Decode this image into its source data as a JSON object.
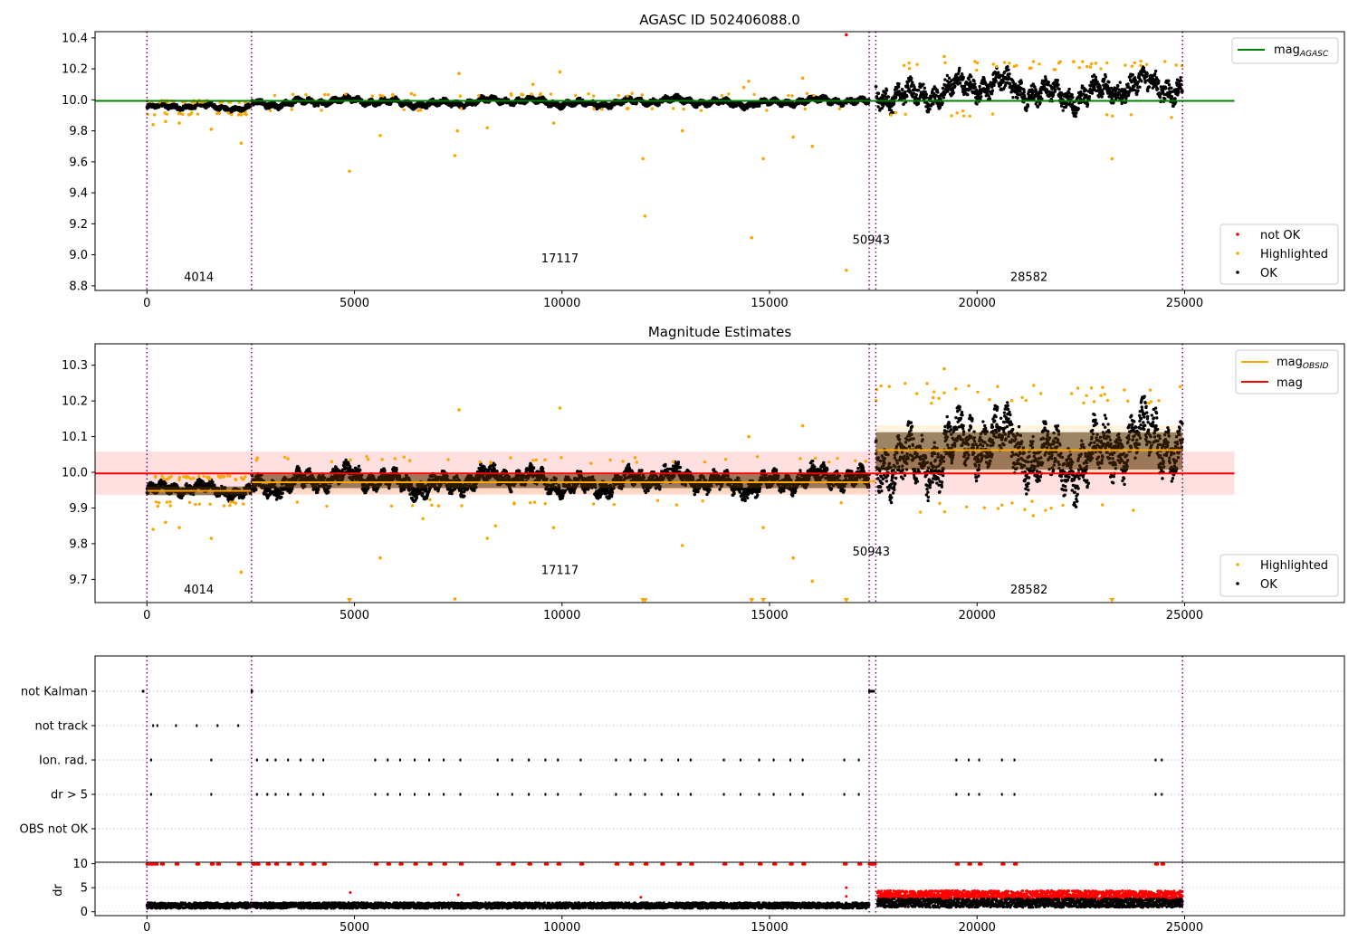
{
  "chart_data": [
    {
      "panel": "top",
      "type": "scatter",
      "title": "AGASC ID 502406088.0",
      "xlim": [
        -1250,
        28850
      ],
      "ylim": [
        8.77,
        10.44
      ],
      "xticks": [
        "0",
        "5000",
        "10000",
        "15000",
        "20000",
        "25000"
      ],
      "yticks": [
        "8.8",
        "9.0",
        "9.2",
        "9.4",
        "9.6",
        "9.8",
        "10.0",
        "10.2",
        "10.4"
      ],
      "hline": {
        "name": "mag_AGASC",
        "value": 9.993,
        "x": [
          -1250,
          26200
        ],
        "color": "#008000"
      },
      "obsid_boundaries": [
        0,
        2520,
        17400,
        17560,
        24950
      ],
      "obsids": [
        {
          "label": "4014",
          "x": 1250,
          "y": 8.83
        },
        {
          "label": "17117",
          "x": 9950,
          "y": 8.95
        },
        {
          "label": "50943",
          "x": 17450,
          "y": 9.07
        },
        {
          "label": "28582",
          "x": 21250,
          "y": 8.83
        }
      ],
      "segments": [
        {
          "x": [
            0,
            2500
          ],
          "mean": 9.95,
          "amp": 0.025
        },
        {
          "x": [
            2520,
            17400
          ],
          "mean": 9.985,
          "amp": 0.03
        },
        {
          "x": [
            17560,
            24950
          ],
          "mean": 10.06,
          "amp": 0.1
        }
      ],
      "highlighted_points": [
        [
          150,
          9.84
        ],
        [
          450,
          9.86
        ],
        [
          780,
          9.85
        ],
        [
          1550,
          9.81
        ],
        [
          2270,
          9.72
        ],
        [
          4880,
          9.54
        ],
        [
          5620,
          9.77
        ],
        [
          7420,
          9.64
        ],
        [
          7480,
          9.8
        ],
        [
          8200,
          9.82
        ],
        [
          9800,
          9.85
        ],
        [
          11950,
          9.62
        ],
        [
          12000,
          9.25
        ],
        [
          12900,
          9.8
        ],
        [
          14570,
          9.11
        ],
        [
          14850,
          9.62
        ],
        [
          15570,
          9.76
        ],
        [
          16030,
          9.7
        ],
        [
          16850,
          8.9
        ],
        [
          23250,
          9.62
        ],
        [
          7520,
          10.17
        ],
        [
          9950,
          10.18
        ],
        [
          9300,
          10.1
        ],
        [
          14500,
          10.12
        ],
        [
          15800,
          10.14
        ],
        [
          14380,
          10.08
        ],
        [
          19210,
          10.28
        ]
      ],
      "not_ok_points": [
        [
          16850,
          10.42
        ]
      ],
      "legend": {
        "line": "mag",
        "line_sub": "AGASC",
        "markers": [
          "not OK",
          "Highlighted",
          "OK"
        ]
      }
    },
    {
      "panel": "middle",
      "type": "scatter",
      "title": "Magnitude Estimates",
      "xlim": [
        -1250,
        28850
      ],
      "ylim": [
        9.635,
        10.36
      ],
      "xticks": [
        "0",
        "5000",
        "10000",
        "15000",
        "20000",
        "25000"
      ],
      "yticks": [
        "9.7",
        "9.8",
        "9.9",
        "10.0",
        "10.1",
        "10.2",
        "10.3"
      ],
      "mag": {
        "value": 9.997,
        "band": [
          9.937,
          10.058
        ],
        "x": [
          -1250,
          26200
        ],
        "color": "#ff0000"
      },
      "mag_obsid": [
        {
          "x": [
            0,
            2500
          ],
          "value": 9.948,
          "band": [
            9.935,
            9.96
          ]
        },
        {
          "x": [
            2520,
            17400
          ],
          "value": 9.972,
          "band": [
            9.94,
            10.0
          ]
        },
        {
          "x": [
            17400,
            17560
          ],
          "value": 9.975,
          "band": [
            9.96,
            9.99
          ]
        },
        {
          "x": [
            17560,
            24950
          ],
          "value": 10.062,
          "band": [
            9.995,
            10.132
          ]
        }
      ],
      "obsid_boundaries": [
        0,
        2520,
        17400,
        17560,
        24950
      ],
      "obsids": [
        {
          "label": "4014",
          "x": 1250,
          "y": 9.66
        },
        {
          "label": "17117",
          "x": 9950,
          "y": 9.715
        },
        {
          "label": "50943",
          "x": 17450,
          "y": 9.767
        },
        {
          "label": "28582",
          "x": 21250,
          "y": 9.66
        }
      ],
      "offscale_markers_x": [
        4880,
        11950,
        12000,
        14570,
        14850,
        16850,
        23250
      ],
      "highlighted_points": [
        [
          150,
          9.84
        ],
        [
          450,
          9.86
        ],
        [
          780,
          9.845
        ],
        [
          1550,
          9.815
        ],
        [
          2270,
          9.72
        ],
        [
          5620,
          9.76
        ],
        [
          7420,
          9.645
        ],
        [
          6650,
          9.87
        ],
        [
          8200,
          9.815
        ],
        [
          8400,
          9.85
        ],
        [
          9800,
          9.845
        ],
        [
          12900,
          9.795
        ],
        [
          14850,
          9.845
        ],
        [
          15570,
          9.76
        ],
        [
          16030,
          9.695
        ],
        [
          7520,
          10.175
        ],
        [
          9950,
          10.18
        ],
        [
          14500,
          10.1
        ],
        [
          15800,
          10.13
        ],
        [
          19210,
          10.29
        ]
      ],
      "legend": {
        "line1": "mag",
        "line1_sub": "OBSID",
        "line2": "mag",
        "markers": [
          "Highlighted",
          "OK"
        ]
      }
    },
    {
      "panel": "flags",
      "type": "scatter",
      "xlim": [
        -1250,
        28850
      ],
      "categories": [
        "not Kalman",
        "not track",
        "Ion. rad.",
        "dr > 5",
        "OBS not OK"
      ],
      "flag_points": {
        "not Kalman": [
          [
            -100,
            60
          ],
          [
            2520,
            60
          ],
          [
            17400,
            160
          ]
        ],
        "not track": [
          [
            150,
            15
          ],
          [
            250,
            15
          ],
          [
            700,
            15
          ],
          [
            1200,
            15
          ],
          [
            1700,
            25
          ],
          [
            2200,
            10
          ]
        ],
        "Ion. rad.": [
          [
            100,
            0
          ],
          [
            1550,
            0
          ],
          [
            2650,
            0
          ],
          [
            2900,
            0
          ],
          [
            3100,
            0
          ],
          [
            3400,
            0
          ],
          [
            3700,
            0
          ],
          [
            4000,
            0
          ],
          [
            4250,
            0
          ],
          [
            5500,
            0
          ],
          [
            5800,
            0
          ],
          [
            6100,
            0
          ],
          [
            6450,
            0
          ],
          [
            6800,
            0
          ],
          [
            7150,
            0
          ],
          [
            7550,
            0
          ],
          [
            8450,
            0
          ],
          [
            8800,
            0
          ],
          [
            9200,
            0
          ],
          [
            9600,
            0
          ],
          [
            9900,
            0
          ],
          [
            10450,
            0
          ],
          [
            11300,
            0
          ],
          [
            11650,
            0
          ],
          [
            12000,
            0
          ],
          [
            12400,
            0
          ],
          [
            12800,
            0
          ],
          [
            13100,
            0
          ],
          [
            13900,
            0
          ],
          [
            14300,
            0
          ],
          [
            14750,
            0
          ],
          [
            15100,
            0
          ],
          [
            15500,
            0
          ],
          [
            15800,
            0
          ],
          [
            16800,
            0
          ],
          [
            17150,
            0
          ],
          [
            19500,
            0
          ],
          [
            19800,
            0
          ],
          [
            20050,
            0
          ],
          [
            20600,
            0
          ],
          [
            20900,
            0
          ],
          [
            24300,
            0
          ],
          [
            24450,
            0
          ]
        ],
        "dr > 5": [
          [
            100,
            0
          ],
          [
            1550,
            0
          ],
          [
            2650,
            0
          ],
          [
            2900,
            0
          ],
          [
            3100,
            0
          ],
          [
            3400,
            0
          ],
          [
            3700,
            0
          ],
          [
            4000,
            0
          ],
          [
            4250,
            0
          ],
          [
            5500,
            0
          ],
          [
            5800,
            0
          ],
          [
            6100,
            0
          ],
          [
            6450,
            0
          ],
          [
            6800,
            0
          ],
          [
            7150,
            0
          ],
          [
            7550,
            0
          ],
          [
            8450,
            0
          ],
          [
            8800,
            0
          ],
          [
            9200,
            0
          ],
          [
            9600,
            0
          ],
          [
            9900,
            0
          ],
          [
            10450,
            0
          ],
          [
            11300,
            0
          ],
          [
            11650,
            0
          ],
          [
            12000,
            0
          ],
          [
            12400,
            0
          ],
          [
            12800,
            0
          ],
          [
            13100,
            0
          ],
          [
            13900,
            0
          ],
          [
            14300,
            0
          ],
          [
            14750,
            0
          ],
          [
            15100,
            0
          ],
          [
            15500,
            0
          ],
          [
            15800,
            0
          ],
          [
            16800,
            0
          ],
          [
            17150,
            0
          ],
          [
            19500,
            0
          ],
          [
            19800,
            0
          ],
          [
            20050,
            0
          ],
          [
            20600,
            0
          ],
          [
            20900,
            0
          ],
          [
            24300,
            0
          ],
          [
            24450,
            0
          ]
        ],
        "OBS not OK": []
      },
      "obsid_boundaries": [
        0,
        2520,
        17400,
        17560,
        24950
      ]
    },
    {
      "panel": "dr",
      "type": "scatter",
      "ylabel": "dr",
      "xlim": [
        -1250,
        28850
      ],
      "ylim": [
        -0.8,
        10.3
      ],
      "xticks": [
        "0",
        "5000",
        "10000",
        "15000",
        "20000",
        "25000"
      ],
      "yticks": [
        "0",
        "5",
        "10"
      ],
      "segments": [
        {
          "x": [
            0,
            17400
          ],
          "mean": 1.3,
          "spread": 0.6
        },
        {
          "x": [
            17600,
            24950
          ],
          "mean": 1.8,
          "spread": 0.9
        }
      ],
      "capped_at_10_x": [
        0,
        100,
        200,
        350,
        700,
        1200,
        1550,
        1700,
        2200,
        2550,
        2650,
        2900,
        3100,
        3400,
        3700,
        4000,
        4250,
        5500,
        5800,
        6100,
        6450,
        6800,
        7150,
        7550,
        8450,
        8800,
        9200,
        9600,
        9900,
        10450,
        11300,
        11650,
        12000,
        12400,
        12800,
        13100,
        13900,
        14300,
        14750,
        15100,
        15500,
        15800,
        16800,
        17150,
        17400,
        17450,
        17500,
        19500,
        19800,
        20050,
        20600,
        20900,
        24300,
        24450
      ],
      "red_points": [
        [
          4900,
          4.0
        ],
        [
          7500,
          3.5
        ],
        [
          11900,
          3.0
        ],
        [
          16850,
          5.0
        ],
        [
          16850,
          3.2
        ]
      ],
      "obsid_boundaries": [
        0,
        2520,
        17400,
        17560,
        24950
      ]
    }
  ]
}
